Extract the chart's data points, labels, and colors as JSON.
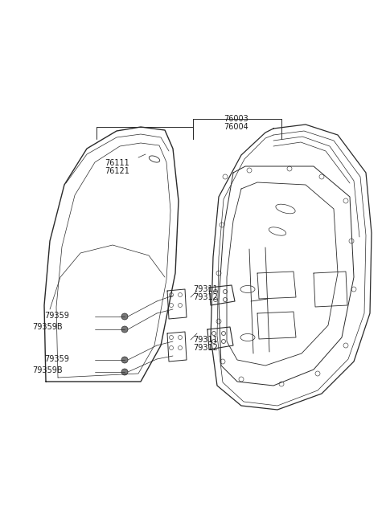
{
  "bg_color": "#ffffff",
  "lc": "#2a2a2a",
  "label_color": "#1a1a1a",
  "fig_width": 4.8,
  "fig_height": 6.56,
  "dpi": 100
}
